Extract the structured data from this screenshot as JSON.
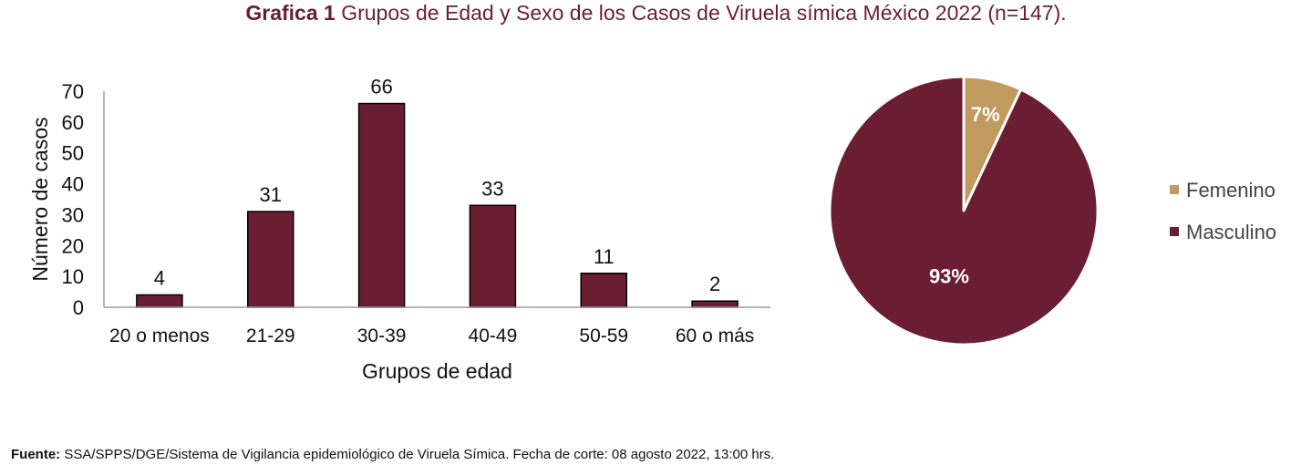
{
  "title": {
    "prefix": "Grafica 1",
    "text": "Grupos de Edad y Sexo de los Casos de Viruela símica México 2022 (n=147)."
  },
  "colors": {
    "bar": "#6b1e33",
    "femenino": "#c19a5f",
    "masculino": "#6b1e33",
    "title": "#6b1e33"
  },
  "chart_data": [
    {
      "type": "bar",
      "categories": [
        "20 o menos",
        "21-29",
        "30-39",
        "40-49",
        "50-59",
        "60 o más"
      ],
      "values": [
        4,
        31,
        66,
        33,
        11,
        2
      ],
      "xlabel": "Grupos de edad",
      "ylabel": "Número de casos",
      "ylim": [
        0,
        70
      ],
      "yticks": [
        0,
        10,
        20,
        30,
        40,
        50,
        60,
        70
      ],
      "grid": false,
      "data_labels": true
    },
    {
      "type": "pie",
      "labels": [
        "Femenino",
        "Masculino"
      ],
      "values": [
        7,
        93
      ],
      "slice_labels": [
        "7%",
        "93%"
      ],
      "legend": "right"
    }
  ],
  "footer": {
    "label": "Fuente:",
    "text": " SSA/SPPS/DGE/Sistema de Vigilancia epidemiológico de Viruela Símica. Fecha de corte: 08 agosto 2022, 13:00 hrs."
  }
}
